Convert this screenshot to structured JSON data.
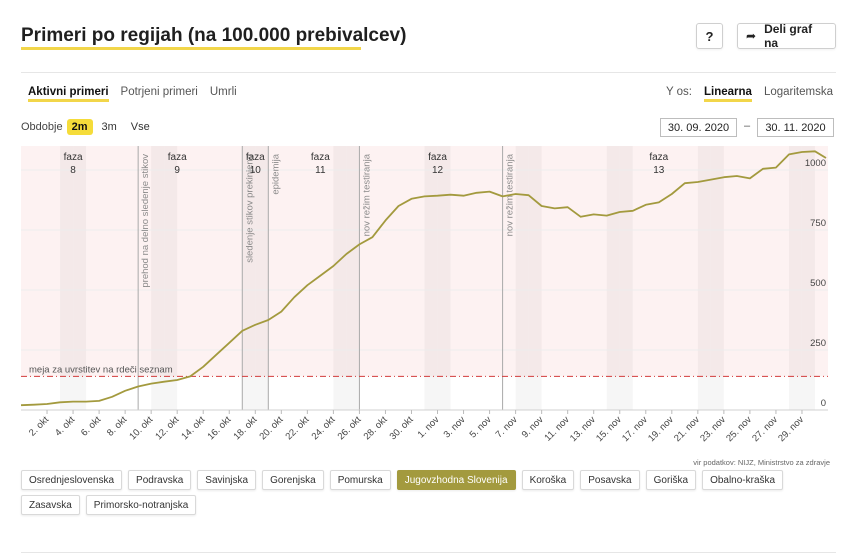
{
  "title": "Primeri po regijah (na 100.000 prebivalcev)",
  "header": {
    "help_label": "?",
    "share_label": "Deli graf na"
  },
  "tabs": [
    {
      "label": "Aktivni primeri",
      "active": true
    },
    {
      "label": "Potrjeni primeri",
      "active": false
    },
    {
      "label": "Umrli",
      "active": false
    }
  ],
  "yaxis_toggle": {
    "label": "Y os:",
    "options": [
      "Linearna",
      "Logaritemska"
    ],
    "selected": "Linearna"
  },
  "period": {
    "label": "Obdobje",
    "options": [
      "2m",
      "3m",
      "Vse"
    ],
    "selected": "2m"
  },
  "date_range": {
    "from": "30. 09. 2020",
    "separator": "–",
    "to": "30. 11. 2020"
  },
  "source": "vir podatkov: NIJZ, Ministrstvo za zdravje",
  "regions": [
    {
      "label": "Osrednjeslovenska",
      "active": false
    },
    {
      "label": "Podravska",
      "active": false
    },
    {
      "label": "Savinjska",
      "active": false
    },
    {
      "label": "Gorenjska",
      "active": false
    },
    {
      "label": "Pomurska",
      "active": false
    },
    {
      "label": "Jugovzhodna Slovenija",
      "active": true
    },
    {
      "label": "Koroška",
      "active": false
    },
    {
      "label": "Posavska",
      "active": false
    },
    {
      "label": "Goriška",
      "active": false
    },
    {
      "label": "Obalno-kraška",
      "active": false
    },
    {
      "label": "Zasavska",
      "active": false
    },
    {
      "label": "Primorsko-notranjska",
      "active": false
    }
  ],
  "colors": {
    "line": "#a39a3e",
    "threshold": "#d23b3b",
    "accent": "#f2d64a",
    "region_active": "#a39a3e"
  },
  "chart_data": {
    "type": "line",
    "x_start": "2020-09-30",
    "x_end": "2020-11-30",
    "ylim": [
      0,
      1100
    ],
    "yticks": [
      0,
      250,
      500,
      750,
      1000
    ],
    "x_ticks": [
      "2. okt",
      "4. okt",
      "6. okt",
      "8. okt",
      "10. okt",
      "12. okt",
      "14. okt",
      "16. okt",
      "18. okt",
      "20. okt",
      "22. okt",
      "24. okt",
      "26. okt",
      "28. okt",
      "30. okt",
      "1. nov",
      "3. nov",
      "5. nov",
      "7. nov",
      "9. nov",
      "11. nov",
      "13. nov",
      "15. nov",
      "17. nov",
      "19. nov",
      "21. nov",
      "23. nov",
      "25. nov",
      "27. nov",
      "29. nov"
    ],
    "series": [
      {
        "values": [
          [
            "2020-09-30",
            20
          ],
          [
            "2020-10-01",
            22
          ],
          [
            "2020-10-02",
            25
          ],
          [
            "2020-10-03",
            32
          ],
          [
            "2020-10-04",
            35
          ],
          [
            "2020-10-05",
            35
          ],
          [
            "2020-10-06",
            38
          ],
          [
            "2020-10-07",
            55
          ],
          [
            "2020-10-08",
            80
          ],
          [
            "2020-10-09",
            98
          ],
          [
            "2020-10-10",
            110
          ],
          [
            "2020-10-11",
            118
          ],
          [
            "2020-10-12",
            125
          ],
          [
            "2020-10-13",
            140
          ],
          [
            "2020-10-14",
            180
          ],
          [
            "2020-10-15",
            230
          ],
          [
            "2020-10-16",
            280
          ],
          [
            "2020-10-17",
            330
          ],
          [
            "2020-10-18",
            355
          ],
          [
            "2020-10-19",
            375
          ],
          [
            "2020-10-20",
            410
          ],
          [
            "2020-10-21",
            470
          ],
          [
            "2020-10-22",
            520
          ],
          [
            "2020-10-23",
            560
          ],
          [
            "2020-10-24",
            600
          ],
          [
            "2020-10-25",
            650
          ],
          [
            "2020-10-26",
            690
          ],
          [
            "2020-10-27",
            720
          ],
          [
            "2020-10-28",
            790
          ],
          [
            "2020-10-29",
            850
          ],
          [
            "2020-10-30",
            880
          ],
          [
            "2020-10-31",
            890
          ],
          [
            "2020-11-01",
            893
          ],
          [
            "2020-11-02",
            897
          ],
          [
            "2020-11-03",
            893
          ],
          [
            "2020-11-04",
            905
          ],
          [
            "2020-11-05",
            910
          ],
          [
            "2020-11-06",
            890
          ],
          [
            "2020-11-07",
            900
          ],
          [
            "2020-11-08",
            895
          ],
          [
            "2020-11-09",
            850
          ],
          [
            "2020-11-10",
            840
          ],
          [
            "2020-11-11",
            845
          ],
          [
            "2020-11-12",
            805
          ],
          [
            "2020-11-13",
            815
          ],
          [
            "2020-11-14",
            810
          ],
          [
            "2020-11-15",
            825
          ],
          [
            "2020-11-16",
            830
          ],
          [
            "2020-11-17",
            855
          ],
          [
            "2020-11-18",
            865
          ],
          [
            "2020-11-19",
            900
          ],
          [
            "2020-11-20",
            945
          ],
          [
            "2020-11-21",
            950
          ],
          [
            "2020-11-22",
            960
          ],
          [
            "2020-11-23",
            970
          ],
          [
            "2020-11-24",
            975
          ],
          [
            "2020-11-25",
            965
          ],
          [
            "2020-11-26",
            1005
          ],
          [
            "2020-11-27",
            1010
          ],
          [
            "2020-11-28",
            1065
          ],
          [
            "2020-11-29",
            1075
          ],
          [
            "2020-11-30",
            1078
          ],
          [
            "2020-12-01",
            1050
          ]
        ]
      }
    ],
    "threshold": {
      "value": 140,
      "label": "meja za uvrstitev na rdeči seznam"
    },
    "phases": [
      {
        "label": "faza",
        "number": "8",
        "date": "2020-10-04"
      },
      {
        "label": "faza",
        "number": "9",
        "date": "2020-10-12"
      },
      {
        "label": "faza",
        "number": "10",
        "date": "2020-10-18"
      },
      {
        "label": "faza",
        "number": "11",
        "date": "2020-10-23"
      },
      {
        "label": "faza",
        "number": "12",
        "date": "2020-11-01"
      },
      {
        "label": "faza",
        "number": "13",
        "date": "2020-11-18"
      }
    ],
    "events": [
      {
        "date": "2020-10-09",
        "label": "prehod na delno sledenje stikov"
      },
      {
        "date": "2020-10-17",
        "label": "sledenje stikov prekinjeno"
      },
      {
        "date": "2020-10-19",
        "label": "epidemija"
      },
      {
        "date": "2020-10-26",
        "label": "nov režim testiranja"
      },
      {
        "date": "2020-11-06",
        "label": "nov režim testiranja"
      }
    ],
    "grid": true
  }
}
